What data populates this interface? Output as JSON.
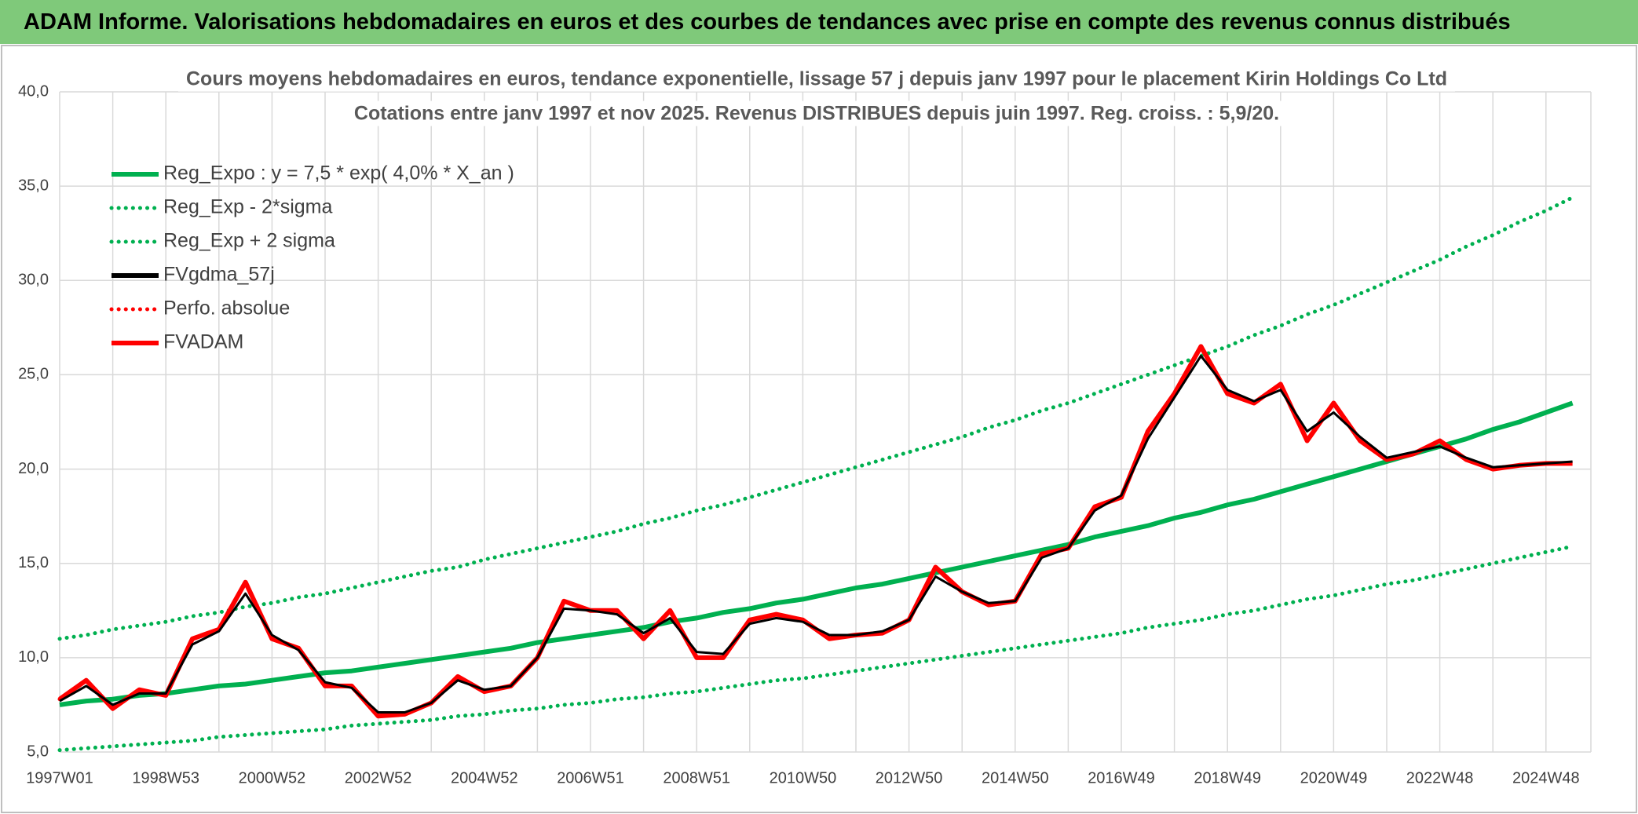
{
  "header": {
    "title": "ADAM Informe. Valorisations hebdomadaires en euros et des courbes de tendances avec prise en compte des revenus connus distribués"
  },
  "chart_data": {
    "type": "line",
    "title": "Cours moyens hebdomadaires en euros, tendance exponentielle, lissage 57 j depuis janv 1997 pour le placement Kirin Holdings Co Ltd",
    "subtitle": "Cotations entre janv 1997 et nov 2025. Revenus DISTRIBUES depuis juin 1997. Reg. croiss. : 5,9/20.",
    "categories": [
      "1997W01",
      null,
      null,
      null,
      "1998W53",
      null,
      null,
      null,
      "2000W52",
      null,
      null,
      null,
      "2002W52",
      null,
      null,
      null,
      "2004W52",
      null,
      null,
      null,
      "2006W51",
      null,
      null,
      null,
      "2008W51",
      null,
      null,
      null,
      "2010W50",
      null,
      null,
      null,
      "2012W50",
      null,
      null,
      null,
      "2014W50",
      null,
      null,
      null,
      "2016W49",
      null,
      null,
      null,
      "2018W49",
      null,
      null,
      null,
      "2020W49",
      null,
      null,
      null,
      "2022W48",
      null,
      null,
      null,
      "2024W48",
      null
    ],
    "ylim": [
      5,
      40
    ],
    "yticks": [
      {
        "value": 5,
        "label": "5,0"
      },
      {
        "value": 10,
        "label": "10,0"
      },
      {
        "value": 15,
        "label": "15,0"
      },
      {
        "value": 20,
        "label": "20,0"
      },
      {
        "value": 25,
        "label": "25,0"
      },
      {
        "value": 30,
        "label": "30,0"
      },
      {
        "value": 35,
        "label": "35,0"
      },
      {
        "value": 40,
        "label": "40,0"
      }
    ],
    "grid": true,
    "legend": "top-left",
    "series": [
      {
        "name": "Reg_Expo : y = 7,5 * exp( 4,0% *  X_an )",
        "color": "#00b050",
        "style": "solid",
        "values": [
          7.5,
          7.7,
          7.8,
          8.0,
          8.1,
          8.3,
          8.5,
          8.6,
          8.8,
          9.0,
          9.2,
          9.3,
          9.5,
          9.7,
          9.9,
          10.1,
          10.3,
          10.5,
          10.8,
          11.0,
          11.2,
          11.4,
          11.6,
          11.9,
          12.1,
          12.4,
          12.6,
          12.9,
          13.1,
          13.4,
          13.7,
          13.9,
          14.2,
          14.5,
          14.8,
          15.1,
          15.4,
          15.7,
          16.0,
          16.4,
          16.7,
          17.0,
          17.4,
          17.7,
          18.1,
          18.4,
          18.8,
          19.2,
          19.6,
          20.0,
          20.4,
          20.8,
          21.2,
          21.6,
          22.1,
          22.5,
          23.0,
          23.5
        ]
      },
      {
        "name": "Reg_Exp - 2*sigma",
        "color": "#00b050",
        "style": "dotted",
        "values": [
          5.1,
          5.2,
          5.3,
          5.4,
          5.5,
          5.6,
          5.8,
          5.9,
          6.0,
          6.1,
          6.2,
          6.4,
          6.5,
          6.6,
          6.7,
          6.9,
          7.0,
          7.2,
          7.3,
          7.5,
          7.6,
          7.8,
          7.9,
          8.1,
          8.2,
          8.4,
          8.6,
          8.8,
          8.9,
          9.1,
          9.3,
          9.5,
          9.7,
          9.9,
          10.1,
          10.3,
          10.5,
          10.7,
          10.9,
          11.1,
          11.3,
          11.6,
          11.8,
          12.0,
          12.3,
          12.5,
          12.8,
          13.1,
          13.3,
          13.6,
          13.9,
          14.1,
          14.4,
          14.7,
          15.0,
          15.3,
          15.6,
          15.9
        ]
      },
      {
        "name": "Reg_Exp + 2 sigma",
        "color": "#00b050",
        "style": "dotted",
        "values": [
          11.0,
          11.2,
          11.5,
          11.7,
          11.9,
          12.2,
          12.4,
          12.7,
          12.9,
          13.2,
          13.4,
          13.7,
          14.0,
          14.3,
          14.6,
          14.8,
          15.2,
          15.5,
          15.8,
          16.1,
          16.4,
          16.7,
          17.1,
          17.4,
          17.8,
          18.1,
          18.5,
          18.9,
          19.3,
          19.7,
          20.1,
          20.5,
          20.9,
          21.3,
          21.7,
          22.2,
          22.6,
          23.1,
          23.5,
          24.0,
          24.5,
          25.0,
          25.5,
          26.0,
          26.5,
          27.1,
          27.6,
          28.2,
          28.7,
          29.3,
          29.9,
          30.5,
          31.1,
          31.8,
          32.4,
          33.1,
          33.7,
          34.4
        ]
      },
      {
        "name": "FVgdma_57j",
        "color": "#000000",
        "style": "solid",
        "values": [
          7.7,
          8.5,
          7.5,
          8.1,
          8.1,
          10.7,
          11.4,
          13.4,
          11.2,
          10.4,
          8.7,
          8.4,
          7.1,
          7.1,
          7.6,
          8.8,
          8.3,
          8.5,
          10.0,
          12.6,
          12.5,
          12.3,
          11.3,
          12.1,
          10.3,
          10.2,
          11.8,
          12.1,
          11.9,
          11.2,
          11.2,
          11.4,
          12.0,
          14.3,
          13.5,
          12.9,
          13.0,
          15.3,
          15.8,
          17.8,
          18.6,
          21.6,
          23.8,
          26.0,
          24.2,
          23.6,
          24.2,
          22.0,
          23.0,
          21.7,
          20.6,
          20.9,
          21.2,
          20.6,
          20.1,
          20.2,
          20.3,
          20.4
        ]
      },
      {
        "name": "Perfo. absolue",
        "color": "#ff0000",
        "style": "dotted",
        "values": [
          7.8,
          8.8,
          7.3,
          8.3,
          8.0,
          11.0,
          11.5,
          14.0,
          11.0,
          10.5,
          8.5,
          8.5,
          6.9,
          7.0,
          7.6,
          9.0,
          8.2,
          8.5,
          10.0,
          13.0,
          12.5,
          12.5,
          11.0,
          12.5,
          10.0,
          10.0,
          12.0,
          12.3,
          12.0,
          11.0,
          11.2,
          11.3,
          12.0,
          14.8,
          13.5,
          12.8,
          13.0,
          15.5,
          15.8,
          18.0,
          18.5,
          22.0,
          24.0,
          26.5,
          24.0,
          23.5,
          24.5,
          21.5,
          23.5,
          21.5,
          20.5,
          20.8,
          21.5,
          20.5,
          20.0,
          20.2,
          20.3,
          20.3
        ]
      },
      {
        "name": "FVADAM",
        "color": "#ff0000",
        "style": "solid",
        "values": [
          7.8,
          8.8,
          7.3,
          8.3,
          8.0,
          11.0,
          11.5,
          14.0,
          11.0,
          10.5,
          8.5,
          8.5,
          6.9,
          7.0,
          7.6,
          9.0,
          8.2,
          8.5,
          10.0,
          13.0,
          12.5,
          12.5,
          11.0,
          12.5,
          10.0,
          10.0,
          12.0,
          12.3,
          12.0,
          11.0,
          11.2,
          11.3,
          12.0,
          14.8,
          13.5,
          12.8,
          13.0,
          15.5,
          15.8,
          18.0,
          18.5,
          22.0,
          24.0,
          26.5,
          24.0,
          23.5,
          24.5,
          21.5,
          23.5,
          21.5,
          20.5,
          20.8,
          21.5,
          20.5,
          20.0,
          20.2,
          20.3,
          20.3
        ]
      }
    ]
  }
}
